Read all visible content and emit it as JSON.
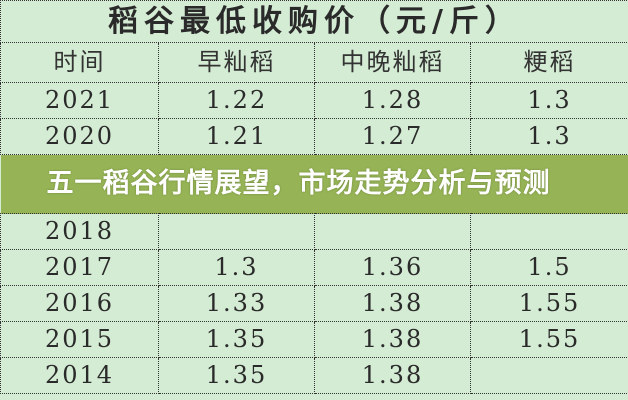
{
  "table": {
    "title": "稻谷最低收购价（元/斤）",
    "headers": [
      "时间",
      "早籼稻",
      "中晚籼稻",
      "粳稻"
    ],
    "rows": [
      [
        "2021",
        "1.22",
        "1.28",
        "1.3"
      ],
      [
        "2020",
        "1.21",
        "1.27",
        "1.3"
      ],
      [
        "2018",
        "",
        "",
        ""
      ],
      [
        "2017",
        "1.3",
        "1.36",
        "1.5"
      ],
      [
        "2016",
        "1.33",
        "1.38",
        "1.55"
      ],
      [
        "2015",
        "1.35",
        "1.38",
        "1.55"
      ],
      [
        "2014",
        "1.35",
        "1.38",
        ""
      ]
    ]
  },
  "banner": {
    "text": "五一稻谷行情展望，市场走势分析与预测"
  },
  "colors": {
    "background": "#d4ecd4",
    "banner": "#96b455"
  }
}
